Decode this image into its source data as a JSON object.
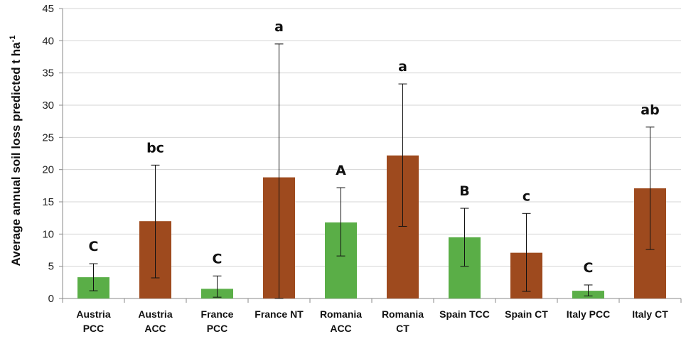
{
  "chart_data": {
    "type": "bar",
    "ylabel": "Average annual soil loss predicted t ha",
    "ylabel_superscript": "-1",
    "ylim": [
      0,
      45
    ],
    "yticks": [
      "0",
      "5",
      "10",
      "15",
      "20",
      "25",
      "30",
      "35",
      "40",
      "45"
    ],
    "grid": true,
    "colors": {
      "green": "#5aae47",
      "brown": "#9e4a1e"
    },
    "categories": [
      {
        "lines": [
          "Austria",
          "PCC"
        ],
        "value": 3.3,
        "err_low": 1.2,
        "err_high": 5.4,
        "letter": "C",
        "color": "green"
      },
      {
        "lines": [
          "Austria",
          "ACC"
        ],
        "value": 12.0,
        "err_low": 3.2,
        "err_high": 20.7,
        "letter": "bc",
        "color": "brown"
      },
      {
        "lines": [
          "France",
          "PCC"
        ],
        "value": 1.5,
        "err_low": 0.2,
        "err_high": 3.5,
        "letter": "C",
        "color": "green"
      },
      {
        "lines": [
          "France NT"
        ],
        "value": 18.8,
        "err_low": 0.0,
        "err_high": 39.5,
        "letter": "a",
        "color": "brown"
      },
      {
        "lines": [
          "Romania",
          "ACC"
        ],
        "value": 11.8,
        "err_low": 6.6,
        "err_high": 17.2,
        "letter": "A",
        "color": "green"
      },
      {
        "lines": [
          "Romania",
          "CT"
        ],
        "value": 22.2,
        "err_low": 11.2,
        "err_high": 33.3,
        "letter": "a",
        "color": "brown"
      },
      {
        "lines": [
          "Spain TCC"
        ],
        "value": 9.5,
        "err_low": 5.0,
        "err_high": 14.0,
        "letter": "B",
        "color": "green"
      },
      {
        "lines": [
          "Spain CT"
        ],
        "value": 7.1,
        "err_low": 1.1,
        "err_high": 13.2,
        "letter": "c",
        "color": "brown"
      },
      {
        "lines": [
          "Italy PCC"
        ],
        "value": 1.2,
        "err_low": 0.4,
        "err_high": 2.1,
        "letter": "C",
        "color": "green"
      },
      {
        "lines": [
          "Italy CT"
        ],
        "value": 17.1,
        "err_low": 7.6,
        "err_high": 26.6,
        "letter": "ab",
        "color": "brown"
      }
    ]
  }
}
